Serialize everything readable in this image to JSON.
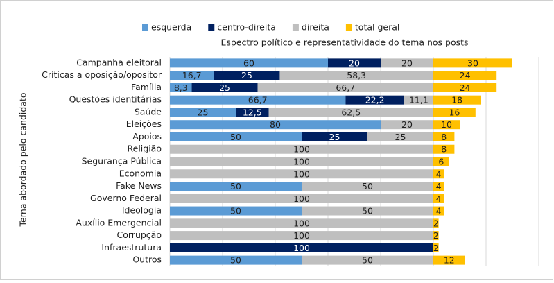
{
  "chart_data": {
    "type": "stacked-bar-horizontal",
    "subtitle": "Espectro político e representatividade do tema nos posts",
    "y_axis_title": "Tema abordado pelo candidato",
    "categories": [
      "Campanha eleitoral",
      "Críticas a oposição/opositor",
      "Família",
      "Questões identitárias",
      "Saúde",
      "Eleições",
      "Apoios",
      "Religião",
      "Segurança Pública",
      "Economia",
      "Fake News",
      "Governo Federal",
      "Ideologia",
      "Auxílio Emergencial",
      "Corrupção",
      "Infraestrutura",
      "Outros"
    ],
    "series": [
      {
        "name": "esquerda",
        "color": "#5b9bd5",
        "label_color": "#1f1f1f",
        "values": [
          60,
          16.7,
          8.3,
          66.7,
          25,
          80,
          50,
          null,
          null,
          null,
          50,
          null,
          50,
          null,
          null,
          null,
          50
        ],
        "value_labels": [
          "60",
          "16,7",
          "8,3",
          "66,7",
          "25",
          "80",
          "50",
          null,
          null,
          null,
          "50",
          null,
          "50",
          null,
          null,
          null,
          "50"
        ]
      },
      {
        "name": "centro-direita",
        "color": "#002060",
        "label_color": "#ffffff",
        "values": [
          20,
          25,
          25,
          22.2,
          12.5,
          null,
          25,
          null,
          null,
          null,
          null,
          null,
          null,
          null,
          null,
          100,
          null
        ],
        "value_labels": [
          "20",
          "25",
          "25",
          "22,2",
          "12,5",
          null,
          "25",
          null,
          null,
          null,
          null,
          null,
          null,
          null,
          null,
          "100",
          null
        ]
      },
      {
        "name": "direita",
        "color": "#bfbfbf",
        "label_color": "#1f1f1f",
        "values": [
          20,
          58.3,
          66.7,
          11.1,
          62.5,
          20,
          25,
          100,
          100,
          100,
          50,
          100,
          50,
          100,
          100,
          null,
          50
        ],
        "value_labels": [
          "20",
          "58,3",
          "66,7",
          "11,1",
          "62,5",
          "20",
          "25",
          "100",
          "100",
          "100",
          "50",
          "100",
          "50",
          "100",
          "100",
          null,
          "50"
        ]
      },
      {
        "name": "total geral",
        "color": "#ffc000",
        "label_color": "#1f1f1f",
        "values": [
          30,
          24,
          24,
          18,
          16,
          10,
          8,
          8,
          6,
          4,
          4,
          4,
          4,
          2,
          2,
          2,
          12
        ]
      }
    ],
    "xlim": [
      0,
      140
    ],
    "xticks": [
      0,
      20,
      40,
      60,
      80,
      100,
      120,
      140
    ],
    "x_tick_labels": false,
    "grid": true,
    "legend": "top"
  }
}
